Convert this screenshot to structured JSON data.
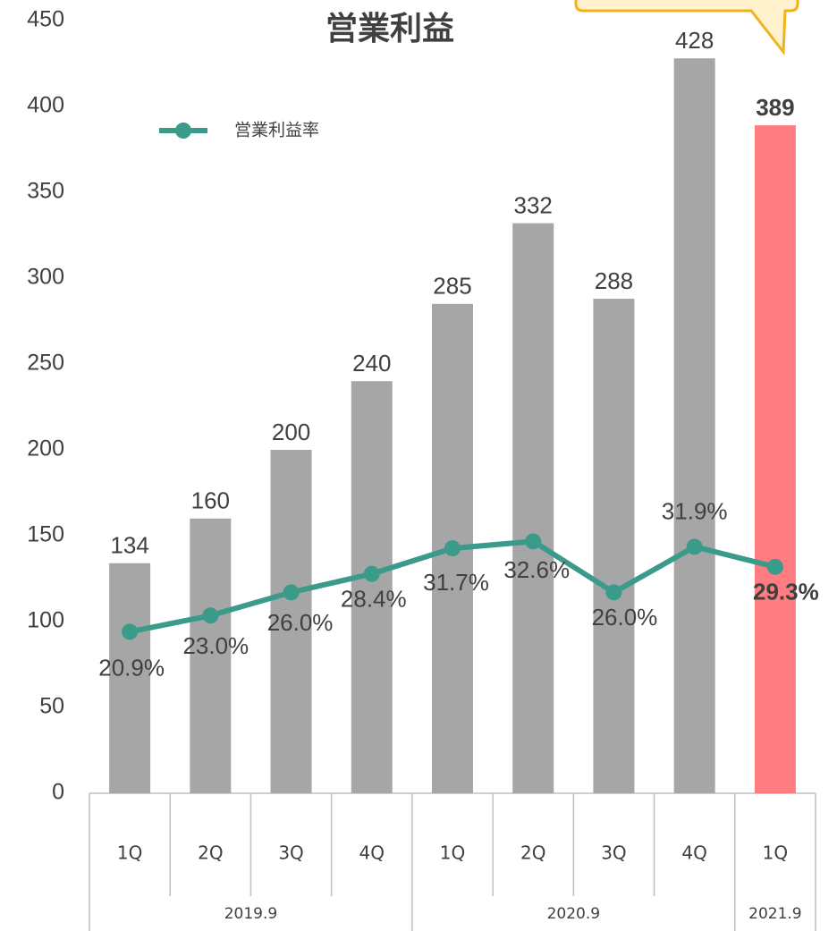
{
  "chart_data": {
    "type": "bar-line",
    "title": "営業利益",
    "groups": [
      {
        "label": "2019.9",
        "categories": [
          "1Q",
          "2Q",
          "3Q",
          "4Q"
        ]
      },
      {
        "label": "2020.9",
        "categories": [
          "1Q",
          "2Q",
          "3Q",
          "4Q"
        ]
      },
      {
        "label": "2021.9",
        "categories": [
          "1Q"
        ]
      }
    ],
    "series": [
      {
        "type": "bar",
        "colors": [
          "#a6a6a6",
          "#a6a6a6",
          "#a6a6a6",
          "#a6a6a6",
          "#a6a6a6",
          "#a6a6a6",
          "#a6a6a6",
          "#a6a6a6",
          "#ff7c80"
        ],
        "values": [
          134,
          160,
          200,
          240,
          285,
          332,
          288,
          428,
          389
        ]
      },
      {
        "type": "line",
        "name": "営業利益率",
        "color": "#3a9b8b",
        "axis": "y2",
        "values": [
          20.9,
          23.0,
          26.0,
          28.4,
          31.7,
          32.6,
          26.0,
          31.9,
          29.3
        ],
        "value_labels": [
          "20.9%",
          "23.0%",
          "26.0%",
          "28.4%",
          "31.7%",
          "32.6%",
          "26.0%",
          "31.9%",
          "29.3%"
        ]
      }
    ],
    "ylim": [
      0,
      450
    ],
    "yticks": [
      0,
      50,
      100,
      150,
      200,
      250,
      300,
      350,
      400,
      450
    ],
    "y2lim": [
      0,
      100
    ],
    "legend": "top-left"
  }
}
